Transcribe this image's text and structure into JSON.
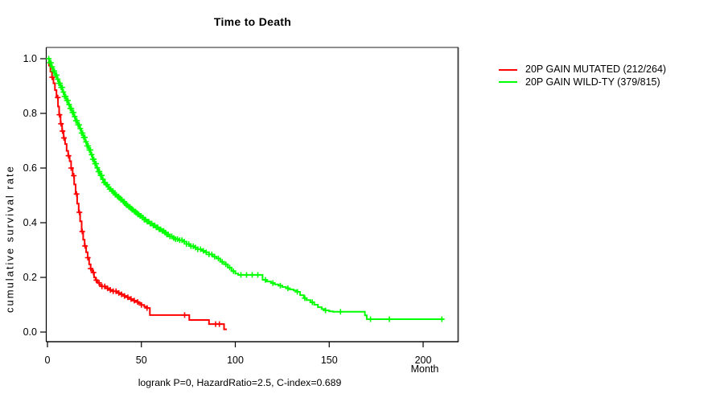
{
  "title": "Time to Death",
  "caption": "logrank P=0, HazardRatio=2.5, C-index=0.689",
  "axes": {
    "y_label": "cumulative survival rate",
    "x_label": "Month",
    "x_ticks": [
      0,
      50,
      100,
      150,
      200
    ],
    "y_ticks": [
      "0.0",
      "0.2",
      "0.4",
      "0.6",
      "0.8",
      "1.0"
    ]
  },
  "legend": [
    {
      "label": "20P GAIN MUTATED (212/264)",
      "color": "#ff0000"
    },
    {
      "label": "20P GAIN WILD-TY (379/815)",
      "color": "#00ff00"
    }
  ],
  "chart_data": {
    "type": "line",
    "subtype": "kaplan-meier-step",
    "title": "Time to Death",
    "xlabel": "Month",
    "ylabel": "cumulative survival rate",
    "xlim": [
      0,
      218
    ],
    "ylim": [
      0,
      1
    ],
    "grid": false,
    "legend_position": "right-outside",
    "series": [
      {
        "name": "20P GAIN MUTATED (212/264)",
        "color": "#ff0000",
        "end_time": 95.5,
        "points": [
          [
            0,
            1.0
          ],
          [
            0.8,
            0.975
          ],
          [
            1.6,
            0.953
          ],
          [
            2.4,
            0.932
          ],
          [
            3.2,
            0.91
          ],
          [
            4.0,
            0.885
          ],
          [
            4.8,
            0.858
          ],
          [
            5.6,
            0.825
          ],
          [
            6.2,
            0.795
          ],
          [
            7.0,
            0.762
          ],
          [
            7.8,
            0.735
          ],
          [
            8.6,
            0.71
          ],
          [
            9.4,
            0.688
          ],
          [
            10.2,
            0.663
          ],
          [
            11.0,
            0.645
          ],
          [
            11.8,
            0.625
          ],
          [
            12.6,
            0.6
          ],
          [
            13.4,
            0.572
          ],
          [
            14.2,
            0.54
          ],
          [
            15.0,
            0.505
          ],
          [
            15.8,
            0.47
          ],
          [
            16.6,
            0.438
          ],
          [
            17.4,
            0.405
          ],
          [
            18.2,
            0.368
          ],
          [
            19.0,
            0.338
          ],
          [
            19.8,
            0.315
          ],
          [
            20.6,
            0.292
          ],
          [
            21.4,
            0.272
          ],
          [
            22.2,
            0.248
          ],
          [
            23.0,
            0.232
          ],
          [
            23.8,
            0.218
          ],
          [
            24.8,
            0.2
          ],
          [
            25.6,
            0.19
          ],
          [
            26.6,
            0.18
          ],
          [
            27.6,
            0.173
          ],
          [
            29.0,
            0.167
          ],
          [
            31.0,
            0.16
          ],
          [
            33.0,
            0.154
          ],
          [
            35.0,
            0.149
          ],
          [
            37.0,
            0.143
          ],
          [
            39.0,
            0.138
          ],
          [
            41.0,
            0.132
          ],
          [
            42.5,
            0.127
          ],
          [
            44.0,
            0.121
          ],
          [
            45.5,
            0.115
          ],
          [
            47.0,
            0.11
          ],
          [
            48.5,
            0.105
          ],
          [
            50.0,
            0.099
          ],
          [
            51.5,
            0.093
          ],
          [
            53.0,
            0.088
          ],
          [
            54.5,
            0.062
          ],
          [
            75.5,
            0.044
          ],
          [
            86.0,
            0.029
          ],
          [
            94.0,
            0.01
          ]
        ],
        "censor_times": [
          2.5,
          5.5,
          6.4,
          7.2,
          8.0,
          8.8,
          11.2,
          12.6,
          14.0,
          15.5,
          17.0,
          18.5,
          20.0,
          21.5,
          23.0,
          24.5,
          26.0,
          27.5,
          29.0,
          30.5,
          32.0,
          33.5,
          35.0,
          36.5,
          38.0,
          39.5,
          41.0,
          42.8,
          44.5,
          46.2,
          48.0,
          50.0,
          53.0,
          73.0,
          89.5,
          91.5
        ]
      },
      {
        "name": "20P GAIN WILD-TY (379/815)",
        "color": "#00ff00",
        "end_time": 211,
        "points": [
          [
            0,
            1.0
          ],
          [
            1,
            0.985
          ],
          [
            2,
            0.97
          ],
          [
            3,
            0.955
          ],
          [
            4,
            0.94
          ],
          [
            5,
            0.925
          ],
          [
            6,
            0.91
          ],
          [
            7,
            0.895
          ],
          [
            8,
            0.878
          ],
          [
            9,
            0.862
          ],
          [
            10,
            0.847
          ],
          [
            11,
            0.832
          ],
          [
            12,
            0.818
          ],
          [
            13,
            0.803
          ],
          [
            14,
            0.788
          ],
          [
            15,
            0.773
          ],
          [
            16,
            0.758
          ],
          [
            17,
            0.744
          ],
          [
            18,
            0.728
          ],
          [
            19,
            0.712
          ],
          [
            20,
            0.696
          ],
          [
            21,
            0.681
          ],
          [
            22,
            0.666
          ],
          [
            23,
            0.649
          ],
          [
            24,
            0.632
          ],
          [
            25,
            0.616
          ],
          [
            26,
            0.601
          ],
          [
            27,
            0.587
          ],
          [
            28,
            0.573
          ],
          [
            29,
            0.559
          ],
          [
            30,
            0.547
          ],
          [
            31,
            0.539
          ],
          [
            32,
            0.531
          ],
          [
            33,
            0.523
          ],
          [
            34,
            0.516
          ],
          [
            35,
            0.509
          ],
          [
            36,
            0.502
          ],
          [
            37,
            0.496
          ],
          [
            38,
            0.49
          ],
          [
            39,
            0.484
          ],
          [
            40,
            0.477
          ],
          [
            41,
            0.47
          ],
          [
            42,
            0.464
          ],
          [
            43,
            0.458
          ],
          [
            44,
            0.452
          ],
          [
            45,
            0.447
          ],
          [
            46,
            0.441
          ],
          [
            47,
            0.436
          ],
          [
            48,
            0.43
          ],
          [
            49,
            0.425
          ],
          [
            50,
            0.419
          ],
          [
            51.5,
            0.411
          ],
          [
            53,
            0.404
          ],
          [
            54.5,
            0.397
          ],
          [
            56,
            0.39
          ],
          [
            57.5,
            0.383
          ],
          [
            59,
            0.376
          ],
          [
            60.5,
            0.37
          ],
          [
            62,
            0.364
          ],
          [
            63.5,
            0.357
          ],
          [
            65,
            0.35
          ],
          [
            66.5,
            0.344
          ],
          [
            68,
            0.34
          ],
          [
            70,
            0.336
          ],
          [
            72,
            0.331
          ],
          [
            74,
            0.322
          ],
          [
            76,
            0.314
          ],
          [
            78,
            0.309
          ],
          [
            80,
            0.303
          ],
          [
            82,
            0.297
          ],
          [
            84,
            0.292
          ],
          [
            86,
            0.284
          ],
          [
            88,
            0.276
          ],
          [
            90,
            0.269
          ],
          [
            92,
            0.257
          ],
          [
            94,
            0.248
          ],
          [
            96,
            0.236
          ],
          [
            98,
            0.223
          ],
          [
            100,
            0.214
          ],
          [
            101.5,
            0.209
          ],
          [
            114.5,
            0.191
          ],
          [
            116.5,
            0.185
          ],
          [
            119,
            0.179
          ],
          [
            121,
            0.174
          ],
          [
            123,
            0.17
          ],
          [
            125,
            0.165
          ],
          [
            127,
            0.16
          ],
          [
            129,
            0.156
          ],
          [
            131,
            0.152
          ],
          [
            133,
            0.147
          ],
          [
            134.5,
            0.135
          ],
          [
            136.5,
            0.124
          ],
          [
            138,
            0.117
          ],
          [
            140,
            0.109
          ],
          [
            142,
            0.1
          ],
          [
            144,
            0.091
          ],
          [
            146,
            0.084
          ],
          [
            148,
            0.079
          ],
          [
            150,
            0.076
          ],
          [
            152,
            0.074
          ],
          [
            169,
            0.061
          ],
          [
            170,
            0.047
          ]
        ],
        "censor_times": [
          0.7,
          1.3,
          1.9,
          2.5,
          3.1,
          3.7,
          4.3,
          4.9,
          5.5,
          6.1,
          6.7,
          7.3,
          7.9,
          8.5,
          9.1,
          9.7,
          10.3,
          10.9,
          11.5,
          12.1,
          12.7,
          13.3,
          13.9,
          14.5,
          15.1,
          15.7,
          16.3,
          16.9,
          17.5,
          18.1,
          18.7,
          19.3,
          19.9,
          20.5,
          21.1,
          21.7,
          22.3,
          22.9,
          23.5,
          24.1,
          24.7,
          25.3,
          25.9,
          26.5,
          27.1,
          27.7,
          28.3,
          28.9,
          29.5,
          30.1,
          30.7,
          31.3,
          31.9,
          32.5,
          33.1,
          33.7,
          34.3,
          34.9,
          35.5,
          36.1,
          36.7,
          37.3,
          37.9,
          38.5,
          39.1,
          39.7,
          40.3,
          40.9,
          41.5,
          42.1,
          42.7,
          43.3,
          43.9,
          44.5,
          45.1,
          45.7,
          46.3,
          46.9,
          47.5,
          48.1,
          48.7,
          49.3,
          49.9,
          50.7,
          51.5,
          52.3,
          53.1,
          53.9,
          54.7,
          55.5,
          56.3,
          57.1,
          57.9,
          58.7,
          59.5,
          60.3,
          61.1,
          61.9,
          62.7,
          63.5,
          64.3,
          65.2,
          66.2,
          67.2,
          68.2,
          69.2,
          70.4,
          71.6,
          72.8,
          74,
          75.2,
          76.4,
          77.6,
          78.8,
          80,
          81.5,
          83,
          84.5,
          86,
          87.5,
          89,
          91,
          93,
          95,
          97,
          99,
          103,
          106,
          109,
          112,
          116,
          120,
          124,
          128,
          133,
          137,
          141,
          148,
          156,
          172,
          182,
          210
        ]
      }
    ]
  }
}
